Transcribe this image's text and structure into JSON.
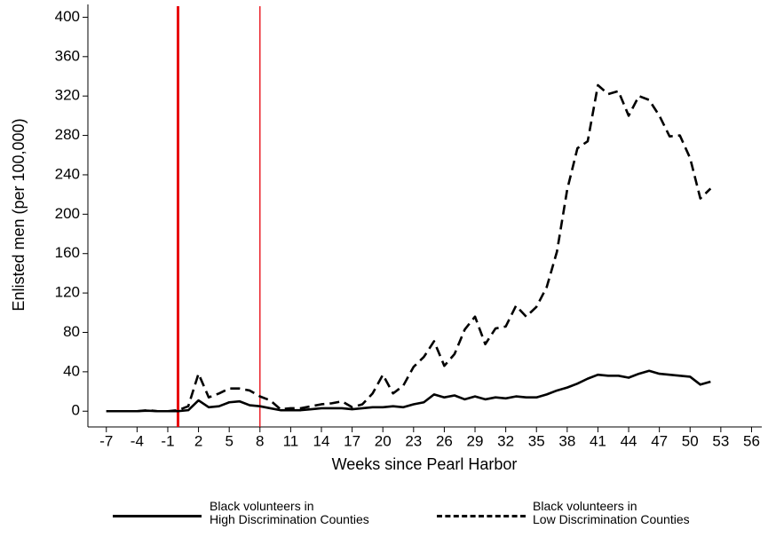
{
  "chart_data": {
    "type": "line",
    "xlabel": "Weeks since Pearl Harbor",
    "ylabel": "Enlisted men (per 100,000)",
    "x": [
      -7,
      -6,
      -5,
      -4,
      -3,
      -2,
      -1,
      0,
      1,
      2,
      3,
      4,
      5,
      6,
      7,
      8,
      9,
      10,
      11,
      12,
      13,
      14,
      15,
      16,
      17,
      18,
      19,
      20,
      21,
      22,
      23,
      24,
      25,
      26,
      27,
      28,
      29,
      30,
      31,
      32,
      33,
      34,
      35,
      36,
      37,
      38,
      39,
      40,
      41,
      42,
      43,
      44,
      45,
      46,
      47,
      48,
      49,
      50,
      51,
      52
    ],
    "series": [
      {
        "name": "Black volunteers in\nHigh Discrimination Counties",
        "color": "#000000",
        "line_style": "solid",
        "values": [
          0,
          0,
          0,
          0,
          0.5,
          0,
          0,
          0,
          1,
          11,
          4,
          5,
          9,
          10,
          6,
          5,
          3,
          1,
          1,
          1,
          2,
          3,
          3,
          3,
          2,
          3,
          4,
          4,
          5,
          4,
          7,
          9,
          17,
          14,
          16,
          12,
          15,
          12,
          14,
          13,
          15,
          14,
          14,
          17,
          21,
          24,
          28,
          33,
          37,
          36,
          36,
          34,
          38,
          41,
          38,
          37,
          36,
          35,
          27,
          30
        ]
      },
      {
        "name": "Black volunteers in\nLow Discrimination Counties",
        "color": "#000000",
        "line_style": "dashed",
        "values": [
          0,
          0,
          0,
          0,
          1,
          0,
          0,
          1,
          5,
          38,
          14,
          18,
          23,
          23,
          21,
          15,
          11,
          2,
          3,
          3,
          5,
          7,
          8,
          10,
          4,
          7,
          18,
          37,
          18,
          26,
          45,
          55,
          71,
          46,
          58,
          83,
          96,
          68,
          84,
          86,
          107,
          96,
          106,
          126,
          162,
          225,
          267,
          274,
          331,
          322,
          325,
          300,
          320,
          316,
          300,
          279,
          280,
          257,
          216,
          226
        ]
      }
    ],
    "vlines": [
      0,
      8
    ],
    "vline_color": "#e8000b",
    "xlim": [
      -8.8,
      57
    ],
    "ylim": [
      -16,
      413
    ],
    "xticks": [
      -7,
      -4,
      -1,
      2,
      5,
      8,
      11,
      14,
      17,
      20,
      23,
      26,
      29,
      32,
      35,
      38,
      41,
      44,
      47,
      50,
      53,
      56
    ],
    "yticks": [
      0,
      40,
      80,
      120,
      160,
      200,
      240,
      280,
      320,
      360,
      400
    ],
    "grid": false,
    "legend": "bottom"
  }
}
